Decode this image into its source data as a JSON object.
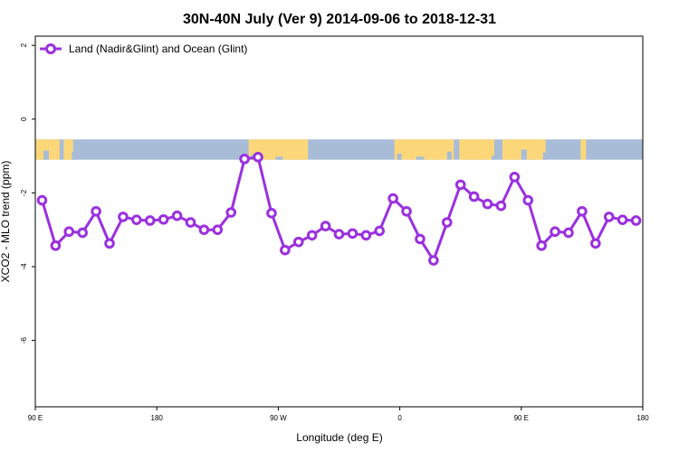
{
  "chart_data": {
    "type": "line",
    "title": "30N-40N July (Ver 9)   2014-09-06 to 2018-12-31",
    "xlabel": "Longitude (deg E)",
    "ylabel": "XCO2 - MLO trend (ppm)",
    "x_ticks": [
      {
        "value": 90,
        "label": "90 E"
      },
      {
        "value": 180,
        "label": "180"
      },
      {
        "value": 270,
        "label": "90 W"
      },
      {
        "value": 360,
        "label": "0"
      },
      {
        "value": 450,
        "label": "90 E"
      },
      {
        "value": 540,
        "label": "180"
      }
    ],
    "y_ticks": [
      {
        "value": 2,
        "label": "2"
      },
      {
        "value": 0,
        "label": "0"
      },
      {
        "value": -2,
        "label": "-2"
      },
      {
        "value": -4,
        "label": "-4"
      },
      {
        "value": -6,
        "label": "-6"
      }
    ],
    "xlim": [
      90,
      540
    ],
    "ylim": [
      -7.8,
      2.25
    ],
    "legend_position": "top-left",
    "colors": {
      "series": "#9b30e0",
      "ocean": "#a8bcd8",
      "land": "#fcd77a"
    },
    "map_band": {
      "ymin": -1.1,
      "ymax": -0.55
    },
    "series": [
      {
        "name": "Land (Nadir&Glint) and Ocean (Glint)",
        "x": [
          95,
          105,
          115,
          125,
          135,
          145,
          155,
          165,
          175,
          185,
          195,
          205,
          215,
          225,
          235,
          245,
          255,
          265,
          275,
          285,
          295,
          305,
          315,
          325,
          335,
          345,
          355,
          365,
          375,
          385,
          395,
          405,
          415,
          425,
          435,
          445,
          455,
          465,
          475,
          485,
          495,
          505,
          515,
          525,
          535
        ],
        "y": [
          -2.2,
          -3.43,
          -3.05,
          -3.08,
          -2.5,
          -3.37,
          -2.65,
          -2.73,
          -2.75,
          -2.72,
          -2.62,
          -2.8,
          -3.0,
          -3.0,
          -2.53,
          -1.08,
          -1.03,
          -2.55,
          -3.55,
          -3.33,
          -3.15,
          -2.9,
          -3.12,
          -3.1,
          -3.15,
          -3.03,
          -2.15,
          -2.5,
          -3.25,
          -3.83,
          -2.8,
          -1.78,
          -2.1,
          -2.3,
          -2.35,
          -1.57,
          -2.2,
          -3.43,
          -3.05,
          -3.08,
          -2.5,
          -3.37,
          -2.65,
          -2.73,
          -2.75
        ]
      }
    ]
  }
}
